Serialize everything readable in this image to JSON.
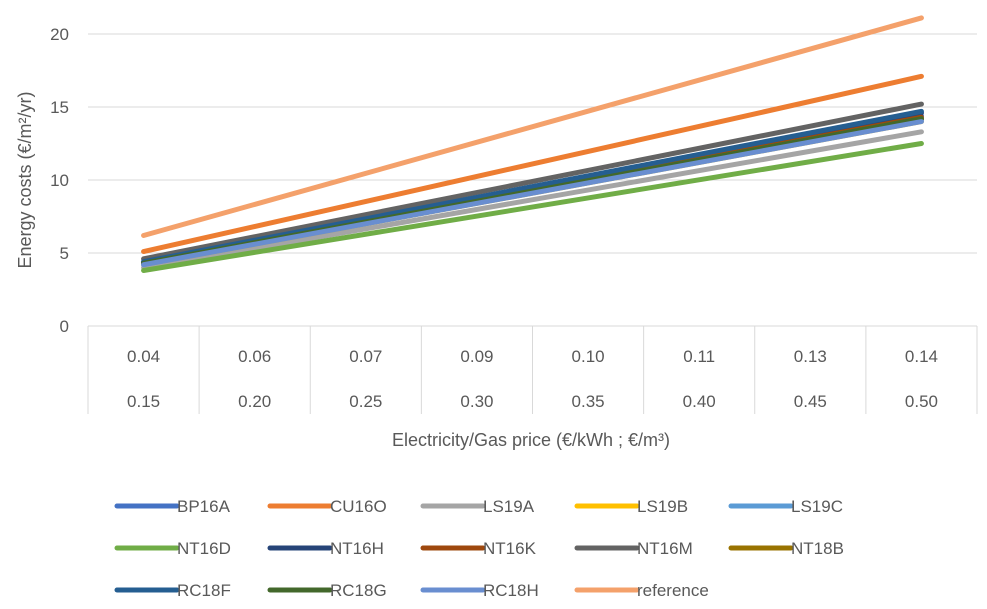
{
  "chart_data": {
    "type": "line",
    "title": "",
    "ylabel": "Energy costs (€/m²/yr)",
    "xlabel": "Electricity/Gas price (€/kWh ; €/m³)",
    "ylim": [
      0,
      20
    ],
    "yticks": [
      0,
      5,
      10,
      15,
      20
    ],
    "grid": true,
    "legend_position": "bottom",
    "categories_level1": [
      "0.04",
      "0.06",
      "0.07",
      "0.09",
      "0.10",
      "0.11",
      "0.13",
      "0.14"
    ],
    "categories_level2": [
      "0.15",
      "0.20",
      "0.25",
      "0.30",
      "0.35",
      "0.40",
      "0.45",
      "0.50"
    ],
    "series": [
      {
        "name": "BP16A",
        "color": "#4472c4",
        "start": 4.3,
        "end": 14.4
      },
      {
        "name": "CU16O",
        "color": "#ed7d31",
        "start": 5.1,
        "end": 17.1
      },
      {
        "name": "LS19A",
        "color": "#a5a5a5",
        "start": 4.0,
        "end": 13.3
      },
      {
        "name": "LS19B",
        "color": "#ffc000",
        "start": 4.2,
        "end": 14.0
      },
      {
        "name": "LS19C",
        "color": "#5b9bd5",
        "start": 4.2,
        "end": 14.1
      },
      {
        "name": "NT16D",
        "color": "#70ad47",
        "start": 3.8,
        "end": 12.5
      },
      {
        "name": "NT16H",
        "color": "#264478",
        "start": 4.4,
        "end": 14.6
      },
      {
        "name": "NT16K",
        "color": "#9e480e",
        "start": 4.3,
        "end": 14.3
      },
      {
        "name": "NT16M",
        "color": "#636363",
        "start": 4.6,
        "end": 15.2
      },
      {
        "name": "NT18B",
        "color": "#997300",
        "start": 4.3,
        "end": 14.2
      },
      {
        "name": "RC18F",
        "color": "#255e91",
        "start": 4.4,
        "end": 14.7
      },
      {
        "name": "RC18G",
        "color": "#43682b",
        "start": 4.3,
        "end": 14.2
      },
      {
        "name": "RC18H",
        "color": "#698ed0",
        "start": 4.2,
        "end": 14.0
      },
      {
        "name": "reference",
        "color": "#f4a16b",
        "start": 6.2,
        "end": 21.1
      }
    ]
  }
}
